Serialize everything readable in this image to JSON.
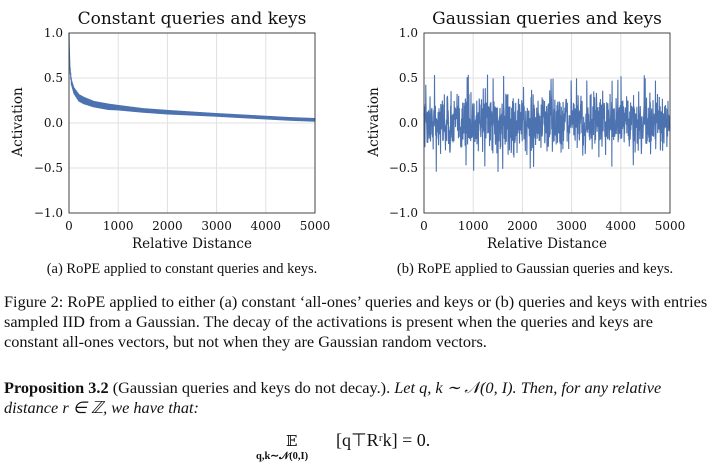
{
  "chart_data": [
    {
      "type": "line",
      "title": "Constant queries and keys",
      "xlabel": "Relative Distance",
      "ylabel": "Activation",
      "xlim": [
        0,
        5000
      ],
      "ylim": [
        -1.0,
        1.0
      ],
      "x_ticks": [
        "0",
        "1000",
        "2000",
        "3000",
        "4000",
        "5000"
      ],
      "y_ticks": [
        "1.0",
        "0.5",
        "0.0",
        "−0.5",
        "−1.0"
      ],
      "grid": true,
      "color": "#4c72b0",
      "series": [
        {
          "x": [
            0,
            5,
            10,
            20,
            50,
            100,
            200,
            300,
            500,
            800,
            1000,
            1500,
            2000,
            2500,
            3000,
            3500,
            4000,
            4500,
            5000
          ],
          "y": [
            1.0,
            0.85,
            0.72,
            0.6,
            0.45,
            0.36,
            0.28,
            0.25,
            0.21,
            0.18,
            0.17,
            0.14,
            0.12,
            0.105,
            0.09,
            0.075,
            0.06,
            0.045,
            0.035
          ],
          "band": [
            0,
            0.01,
            0.015,
            0.02,
            0.03,
            0.035,
            0.04,
            0.04,
            0.035,
            0.035,
            0.03,
            0.025,
            0.025,
            0.022,
            0.02,
            0.02,
            0.02,
            0.02,
            0.02
          ]
        }
      ]
    },
    {
      "type": "line",
      "title": "Gaussian queries and keys",
      "xlabel": "Relative Distance",
      "ylabel": "Activation",
      "xlim": [
        0,
        5000
      ],
      "ylim": [
        -1.0,
        1.0
      ],
      "x_ticks": [
        "0",
        "1000",
        "2000",
        "3000",
        "4000",
        "5000"
      ],
      "y_ticks": [
        "1.0",
        "0.5",
        "0.0",
        "−0.5",
        "−1.0"
      ],
      "grid": true,
      "color": "#4c72b0",
      "series": [
        {
          "x": [
            0,
            5000
          ],
          "y_mean": [
            0.0,
            0.0
          ],
          "y_range": [
            -0.55,
            0.55
          ]
        }
      ]
    }
  ],
  "captions": {
    "a": "(a) RoPE applied to constant queries and keys.",
    "b": "(b) RoPE applied to Gaussian queries and keys."
  },
  "figure_caption": "Figure 2: RoPE applied to either (a) constant ‘all-ones’ queries and keys or (b) queries and keys with entries sampled IID from a Gaussian. The decay of the activations is present when the queries and keys are constant all-ones vectors, but not when they are Gaussian random vectors.",
  "proposition": {
    "heading": "Proposition 3.2",
    "title": " (Gaussian queries and keys do not decay.).",
    "statement": " Let q, k ∼ 𝒩(0, I). Then, for any relative distance r ∈ ℤ, we have that:",
    "eq_operator": "𝔼",
    "eq_subscript": "q,k∼𝒩(0,I)",
    "eq_body": "[q⊤Rʳk] = 0."
  }
}
